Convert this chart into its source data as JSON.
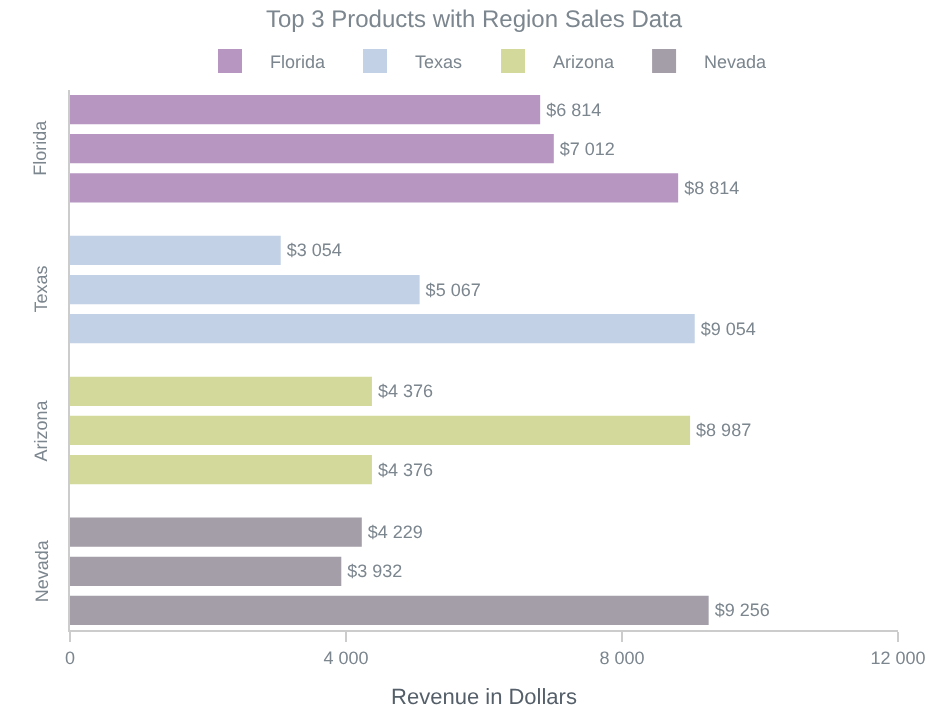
{
  "chart_data": {
    "type": "bar",
    "orientation": "horizontal",
    "title": "Top 3 Products with Region Sales Data",
    "xlabel": "Revenue in Dollars",
    "categories": [
      null,
      null,
      null,
      null,
      null,
      null,
      null,
      null,
      null,
      null,
      null,
      null
    ],
    "legend": "top",
    "annotations": [
      "Florida",
      "Texas",
      "Arizona",
      "Nevada"
    ],
    "series": [
      {
        "name": "Florida",
        "color": "#b797c2",
        "values": [
          6814,
          7012,
          8814,
          null,
          null,
          null,
          null,
          null,
          null,
          null,
          null,
          null
        ],
        "value_labels": [
          "$6 814",
          "$7 012",
          "$8 814",
          null,
          null,
          null,
          null,
          null,
          null,
          null,
          null,
          null
        ]
      },
      {
        "name": "Texas",
        "color": "#c2d1e6",
        "values": [
          null,
          null,
          null,
          3054,
          5067,
          9054,
          null,
          null,
          null,
          null,
          null,
          null
        ],
        "value_labels": [
          null,
          null,
          null,
          "$3 054",
          "$5 067",
          "$9 054",
          null,
          null,
          null,
          null,
          null,
          null
        ]
      },
      {
        "name": "Arizona",
        "color": "#d3d99b",
        "values": [
          null,
          null,
          null,
          null,
          null,
          null,
          4376,
          8987,
          4376,
          null,
          null,
          null
        ],
        "value_labels": [
          null,
          null,
          null,
          null,
          null,
          null,
          "$4 376",
          "$8 987",
          "$4 376",
          null,
          null,
          null
        ]
      },
      {
        "name": "Nevada",
        "color": "#a49ea9",
        "values": [
          null,
          null,
          null,
          null,
          null,
          null,
          null,
          null,
          null,
          4229,
          3932,
          9256
        ],
        "value_labels": [
          null,
          null,
          null,
          null,
          null,
          null,
          null,
          null,
          null,
          "$4 229",
          "$3 932",
          "$9 256"
        ]
      }
    ],
    "xlim": [
      0,
      12000
    ],
    "xticks": [
      0,
      {
        "value": 4000,
        "label": "4 000"
      },
      {
        "value": 8000,
        "label": "8 000"
      },
      {
        "value": 12000,
        "label": "12 000"
      }
    ]
  }
}
